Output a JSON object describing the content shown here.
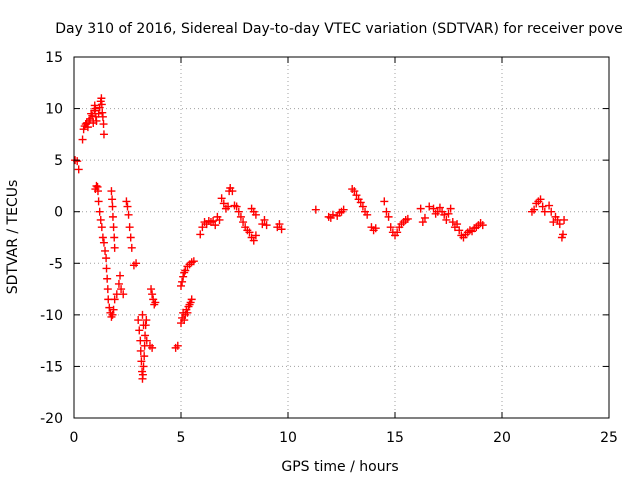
{
  "chart_data": {
    "type": "scatter",
    "title": "Day 310 of 2016, Sidereal Day-to-day VTEC variation (SDTVAR) for receiver pove",
    "xlabel": "GPS time / hours",
    "ylabel": "SDTVAR / TECUs",
    "xlim": [
      0,
      25
    ],
    "ylim": [
      -20,
      15
    ],
    "xticks": [
      0,
      5,
      10,
      15,
      20,
      25
    ],
    "xtick_labels": [
      "0",
      "5",
      "10",
      "15",
      "20",
      "25"
    ],
    "yticks": [
      -20,
      -15,
      -10,
      -5,
      0,
      5,
      10,
      15
    ],
    "ytick_labels": [
      "-20",
      "-15",
      "-10",
      "-5",
      "0",
      "5",
      "10",
      "15"
    ],
    "grid": true,
    "marker": "+",
    "color": "#ff0000",
    "series": [
      {
        "name": "SDTVAR",
        "points": [
          [
            0.05,
            5.0
          ],
          [
            0.15,
            4.9
          ],
          [
            0.22,
            4.1
          ],
          [
            0.4,
            7.0
          ],
          [
            0.45,
            8.0
          ],
          [
            0.5,
            8.3
          ],
          [
            0.55,
            8.5
          ],
          [
            0.6,
            8.6
          ],
          [
            0.65,
            8.2
          ],
          [
            0.7,
            8.8
          ],
          [
            0.75,
            9.0
          ],
          [
            0.8,
            9.5
          ],
          [
            0.85,
            9.3
          ],
          [
            0.9,
            8.6
          ],
          [
            0.95,
            9.8
          ],
          [
            0.97,
            10.3
          ],
          [
            1.0,
            10.0
          ],
          [
            1.02,
            9.2
          ],
          [
            1.05,
            8.8
          ],
          [
            1.15,
            9.5
          ],
          [
            1.2,
            10.1
          ],
          [
            1.25,
            10.7
          ],
          [
            1.28,
            11.0
          ],
          [
            1.3,
            10.4
          ],
          [
            1.32,
            9.6
          ],
          [
            1.35,
            9.2
          ],
          [
            1.38,
            8.5
          ],
          [
            1.4,
            7.5
          ],
          [
            1.0,
            2.2
          ],
          [
            1.05,
            2.5
          ],
          [
            1.1,
            2.4
          ],
          [
            1.12,
            2.0
          ],
          [
            1.15,
            1.0
          ],
          [
            1.2,
            0.0
          ],
          [
            1.25,
            -0.8
          ],
          [
            1.3,
            -1.5
          ],
          [
            1.35,
            -2.5
          ],
          [
            1.4,
            -3.0
          ],
          [
            1.45,
            -3.8
          ],
          [
            1.5,
            -4.5
          ],
          [
            1.52,
            -5.5
          ],
          [
            1.55,
            -6.5
          ],
          [
            1.58,
            -7.5
          ],
          [
            1.6,
            -8.5
          ],
          [
            1.65,
            -9.3
          ],
          [
            1.7,
            -9.8
          ],
          [
            1.75,
            -10.2
          ],
          [
            1.8,
            -10.0
          ],
          [
            1.85,
            -9.5
          ],
          [
            1.75,
            2.0
          ],
          [
            1.78,
            1.2
          ],
          [
            1.8,
            0.5
          ],
          [
            1.82,
            -0.5
          ],
          [
            1.85,
            -1.5
          ],
          [
            1.88,
            -2.5
          ],
          [
            1.9,
            -3.5
          ],
          [
            1.9,
            -8.5
          ],
          [
            2.0,
            -8.0
          ],
          [
            2.1,
            -7.0
          ],
          [
            2.15,
            -6.2
          ],
          [
            2.2,
            -7.5
          ],
          [
            2.3,
            -8.0
          ],
          [
            2.45,
            1.0
          ],
          [
            2.5,
            0.5
          ],
          [
            2.55,
            -0.3
          ],
          [
            2.6,
            -1.5
          ],
          [
            2.65,
            -2.5
          ],
          [
            2.7,
            -3.5
          ],
          [
            2.8,
            -5.2
          ],
          [
            2.9,
            -5.0
          ],
          [
            3.0,
            -10.5
          ],
          [
            3.05,
            -11.5
          ],
          [
            3.1,
            -12.5
          ],
          [
            3.12,
            -13.5
          ],
          [
            3.15,
            -14.5
          ],
          [
            3.18,
            -15.5
          ],
          [
            3.2,
            -16.2
          ],
          [
            3.22,
            -15.8
          ],
          [
            3.25,
            -15.0
          ],
          [
            3.28,
            -14.0
          ],
          [
            3.3,
            -13.0
          ],
          [
            3.32,
            -12.0
          ],
          [
            3.35,
            -11.0
          ],
          [
            3.38,
            -10.5
          ],
          [
            3.2,
            -10.0
          ],
          [
            3.25,
            -11.0
          ],
          [
            3.4,
            -12.5
          ],
          [
            3.6,
            -7.5
          ],
          [
            3.65,
            -8.0
          ],
          [
            3.7,
            -8.5
          ],
          [
            3.75,
            -9.0
          ],
          [
            3.8,
            -8.8
          ],
          [
            3.55,
            -13.0
          ],
          [
            3.65,
            -13.2
          ],
          [
            4.75,
            -13.2
          ],
          [
            4.85,
            -13.0
          ],
          [
            5.0,
            -10.8
          ],
          [
            5.05,
            -10.3
          ],
          [
            5.1,
            -9.8
          ],
          [
            5.15,
            -10.5
          ],
          [
            5.2,
            -10.0
          ],
          [
            5.25,
            -9.5
          ],
          [
            5.3,
            -9.8
          ],
          [
            5.35,
            -9.2
          ],
          [
            5.4,
            -9.0
          ],
          [
            5.45,
            -8.8
          ],
          [
            5.5,
            -8.5
          ],
          [
            5.0,
            -7.2
          ],
          [
            5.05,
            -6.8
          ],
          [
            5.1,
            -6.3
          ],
          [
            5.15,
            -5.9
          ],
          [
            5.2,
            -5.7
          ],
          [
            5.3,
            -5.3
          ],
          [
            5.4,
            -5.1
          ],
          [
            5.5,
            -4.9
          ],
          [
            5.6,
            -4.8
          ],
          [
            5.9,
            -2.2
          ],
          [
            6.0,
            -1.5
          ],
          [
            6.1,
            -1.0
          ],
          [
            6.2,
            -1.2
          ],
          [
            6.3,
            -0.9
          ],
          [
            6.4,
            -1.0
          ],
          [
            6.5,
            -0.9
          ],
          [
            6.6,
            -1.3
          ],
          [
            6.7,
            -0.5
          ],
          [
            6.8,
            -0.8
          ],
          [
            6.9,
            1.3
          ],
          [
            7.0,
            0.8
          ],
          [
            7.1,
            0.3
          ],
          [
            7.2,
            0.5
          ],
          [
            7.25,
            2.0
          ],
          [
            7.3,
            2.3
          ],
          [
            7.4,
            2.0
          ],
          [
            7.5,
            0.6
          ],
          [
            7.6,
            0.5
          ],
          [
            7.7,
            0.0
          ],
          [
            7.8,
            -0.5
          ],
          [
            7.9,
            -1.0
          ],
          [
            8.0,
            -1.5
          ],
          [
            8.1,
            -1.8
          ],
          [
            8.2,
            -2.0
          ],
          [
            8.3,
            -2.5
          ],
          [
            8.4,
            -2.8
          ],
          [
            8.5,
            -2.3
          ],
          [
            8.3,
            0.3
          ],
          [
            8.4,
            0.0
          ],
          [
            8.5,
            -0.3
          ],
          [
            8.8,
            -1.2
          ],
          [
            8.9,
            -0.8
          ],
          [
            9.0,
            -1.3
          ],
          [
            9.5,
            -1.5
          ],
          [
            9.6,
            -1.2
          ],
          [
            9.7,
            -1.7
          ],
          [
            11.3,
            0.2
          ],
          [
            11.9,
            -0.5
          ],
          [
            12.0,
            -0.6
          ],
          [
            12.1,
            -0.3
          ],
          [
            12.3,
            -0.4
          ],
          [
            12.4,
            -0.1
          ],
          [
            12.5,
            0.0
          ],
          [
            12.6,
            0.2
          ],
          [
            13.0,
            2.2
          ],
          [
            13.1,
            2.0
          ],
          [
            13.2,
            1.6
          ],
          [
            13.3,
            1.2
          ],
          [
            13.4,
            0.9
          ],
          [
            13.5,
            0.5
          ],
          [
            13.6,
            0.0
          ],
          [
            13.7,
            -0.3
          ],
          [
            13.9,
            -1.5
          ],
          [
            14.0,
            -1.8
          ],
          [
            14.1,
            -1.6
          ],
          [
            14.5,
            1.0
          ],
          [
            14.6,
            0.0
          ],
          [
            14.7,
            -0.5
          ],
          [
            14.8,
            -1.5
          ],
          [
            14.9,
            -2.0
          ],
          [
            15.0,
            -2.3
          ],
          [
            15.1,
            -2.0
          ],
          [
            15.2,
            -1.5
          ],
          [
            15.3,
            -1.2
          ],
          [
            15.4,
            -1.0
          ],
          [
            15.5,
            -0.8
          ],
          [
            15.6,
            -0.7
          ],
          [
            16.2,
            0.3
          ],
          [
            16.3,
            -1.0
          ],
          [
            16.4,
            -0.6
          ],
          [
            16.6,
            0.5
          ],
          [
            16.8,
            0.3
          ],
          [
            16.9,
            -0.2
          ],
          [
            17.0,
            0.0
          ],
          [
            17.1,
            0.4
          ],
          [
            17.2,
            0.0
          ],
          [
            17.3,
            -0.3
          ],
          [
            17.4,
            -0.8
          ],
          [
            17.5,
            -0.2
          ],
          [
            17.6,
            0.3
          ],
          [
            17.7,
            -1.0
          ],
          [
            17.8,
            -1.5
          ],
          [
            17.9,
            -1.2
          ],
          [
            18.0,
            -1.8
          ],
          [
            18.1,
            -2.3
          ],
          [
            18.2,
            -2.5
          ],
          [
            18.3,
            -2.2
          ],
          [
            18.4,
            -2.0
          ],
          [
            18.5,
            -1.8
          ],
          [
            18.6,
            -1.9
          ],
          [
            18.7,
            -1.6
          ],
          [
            18.8,
            -1.5
          ],
          [
            18.9,
            -1.3
          ],
          [
            19.0,
            -1.1
          ],
          [
            19.1,
            -1.3
          ],
          [
            21.4,
            0.0
          ],
          [
            21.5,
            0.2
          ],
          [
            21.6,
            0.8
          ],
          [
            21.7,
            1.0
          ],
          [
            21.8,
            1.2
          ],
          [
            21.9,
            0.5
          ],
          [
            22.0,
            0.0
          ],
          [
            22.2,
            0.6
          ],
          [
            22.3,
            0.0
          ],
          [
            22.4,
            -1.0
          ],
          [
            22.5,
            -0.5
          ],
          [
            22.6,
            -0.8
          ],
          [
            22.7,
            -1.2
          ],
          [
            22.8,
            -2.5
          ],
          [
            22.85,
            -2.2
          ],
          [
            22.9,
            -0.8
          ]
        ]
      }
    ]
  }
}
